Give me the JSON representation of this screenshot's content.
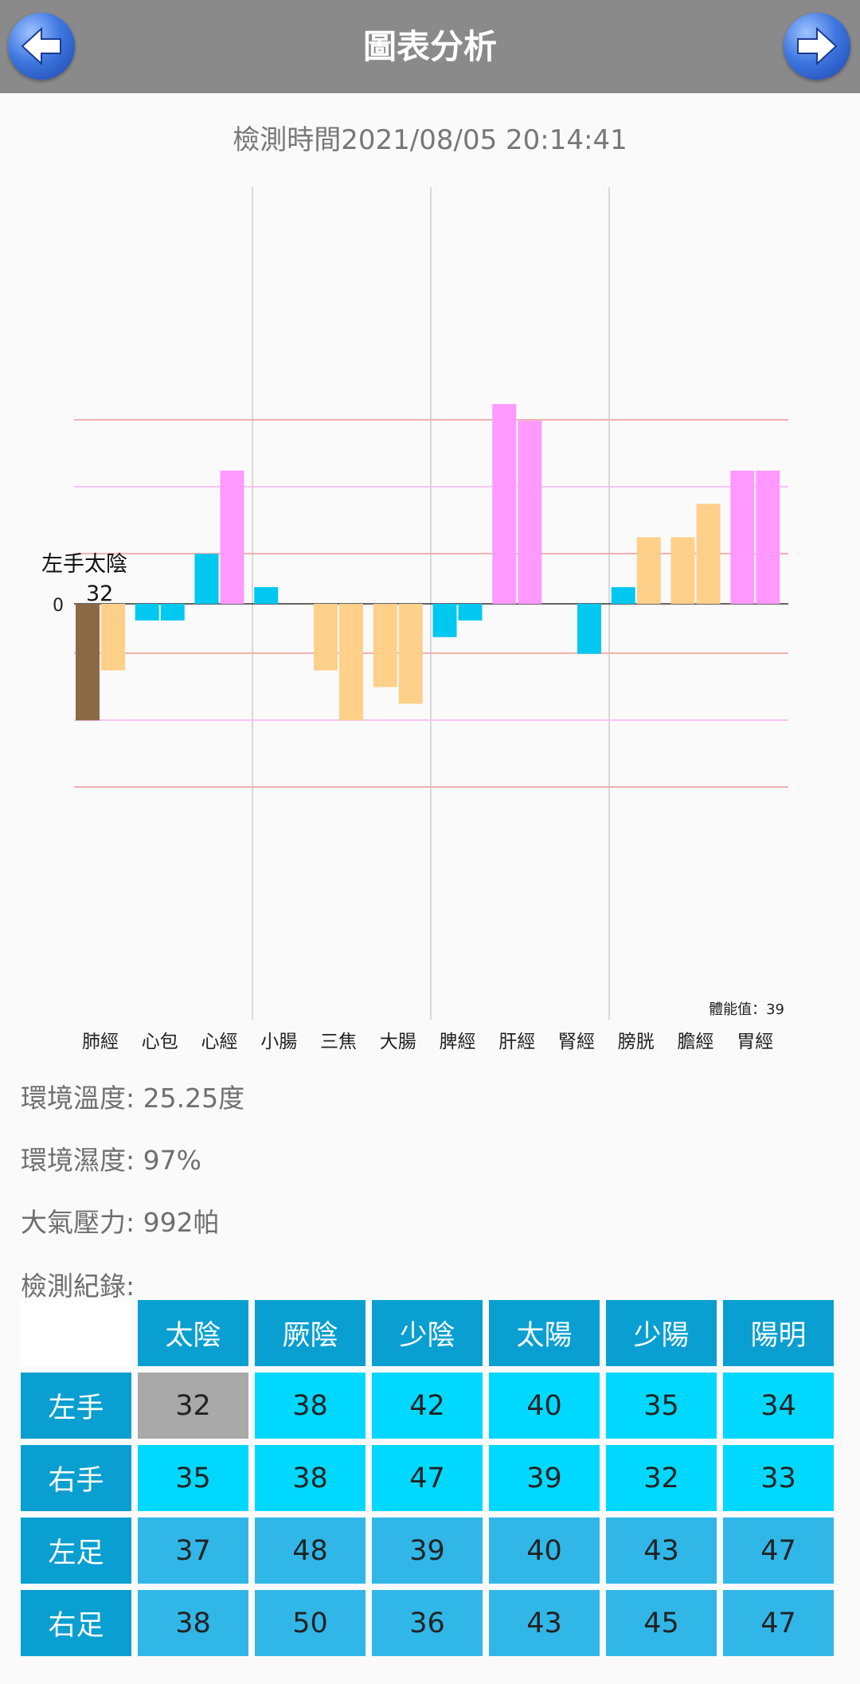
{
  "header": {
    "title": "圖表分析",
    "back_icon": "arrow-left-icon",
    "forward_icon": "arrow-right-icon"
  },
  "timestamp": "檢測時間2021/08/05 20:14:41",
  "chart_data": {
    "type": "bar",
    "categories": [
      "肺經",
      "心包",
      "心經",
      "小腸",
      "三焦",
      "大腸",
      "脾經",
      "肝經",
      "腎經",
      "膀胱",
      "膽經",
      "胃經"
    ],
    "series": [
      {
        "values": [
          -7,
          -1,
          3,
          1,
          -4,
          -5,
          -2,
          12,
          0,
          1,
          4,
          8
        ]
      },
      {
        "values": [
          -4,
          -1,
          8,
          0,
          -7,
          -6,
          -1,
          11,
          -3,
          4,
          6,
          8
        ]
      }
    ],
    "zero_label": "0",
    "selected_label": "左手太陰",
    "selected_value": "32",
    "stamina_label": "體能值：39",
    "ylim": [
      -11,
      11
    ],
    "colors": {
      "positive_pink": "#ff99ff",
      "positive_tan": "#ffd08a",
      "negative_tan": "#ffd08a",
      "blue": "#00c8f0",
      "selected": "#8b6a45"
    }
  },
  "environment": {
    "temperature": "環境溫度: 25.25度",
    "humidity": "環境濕度: 97%",
    "pressure": "大氣壓力: 992帕"
  },
  "records": {
    "label": "檢測紀錄:",
    "columns": [
      "太陰",
      "厥陰",
      "少陰",
      "太陽",
      "少陽",
      "陽明"
    ],
    "rows": [
      {
        "name": "左手",
        "values": [
          "32",
          "38",
          "42",
          "40",
          "35",
          "34"
        ]
      },
      {
        "name": "右手",
        "values": [
          "35",
          "38",
          "47",
          "39",
          "32",
          "33"
        ]
      },
      {
        "name": "左足",
        "values": [
          "37",
          "48",
          "39",
          "40",
          "43",
          "47"
        ]
      },
      {
        "name": "右足",
        "values": [
          "38",
          "50",
          "36",
          "43",
          "45",
          "47"
        ]
      }
    ]
  }
}
